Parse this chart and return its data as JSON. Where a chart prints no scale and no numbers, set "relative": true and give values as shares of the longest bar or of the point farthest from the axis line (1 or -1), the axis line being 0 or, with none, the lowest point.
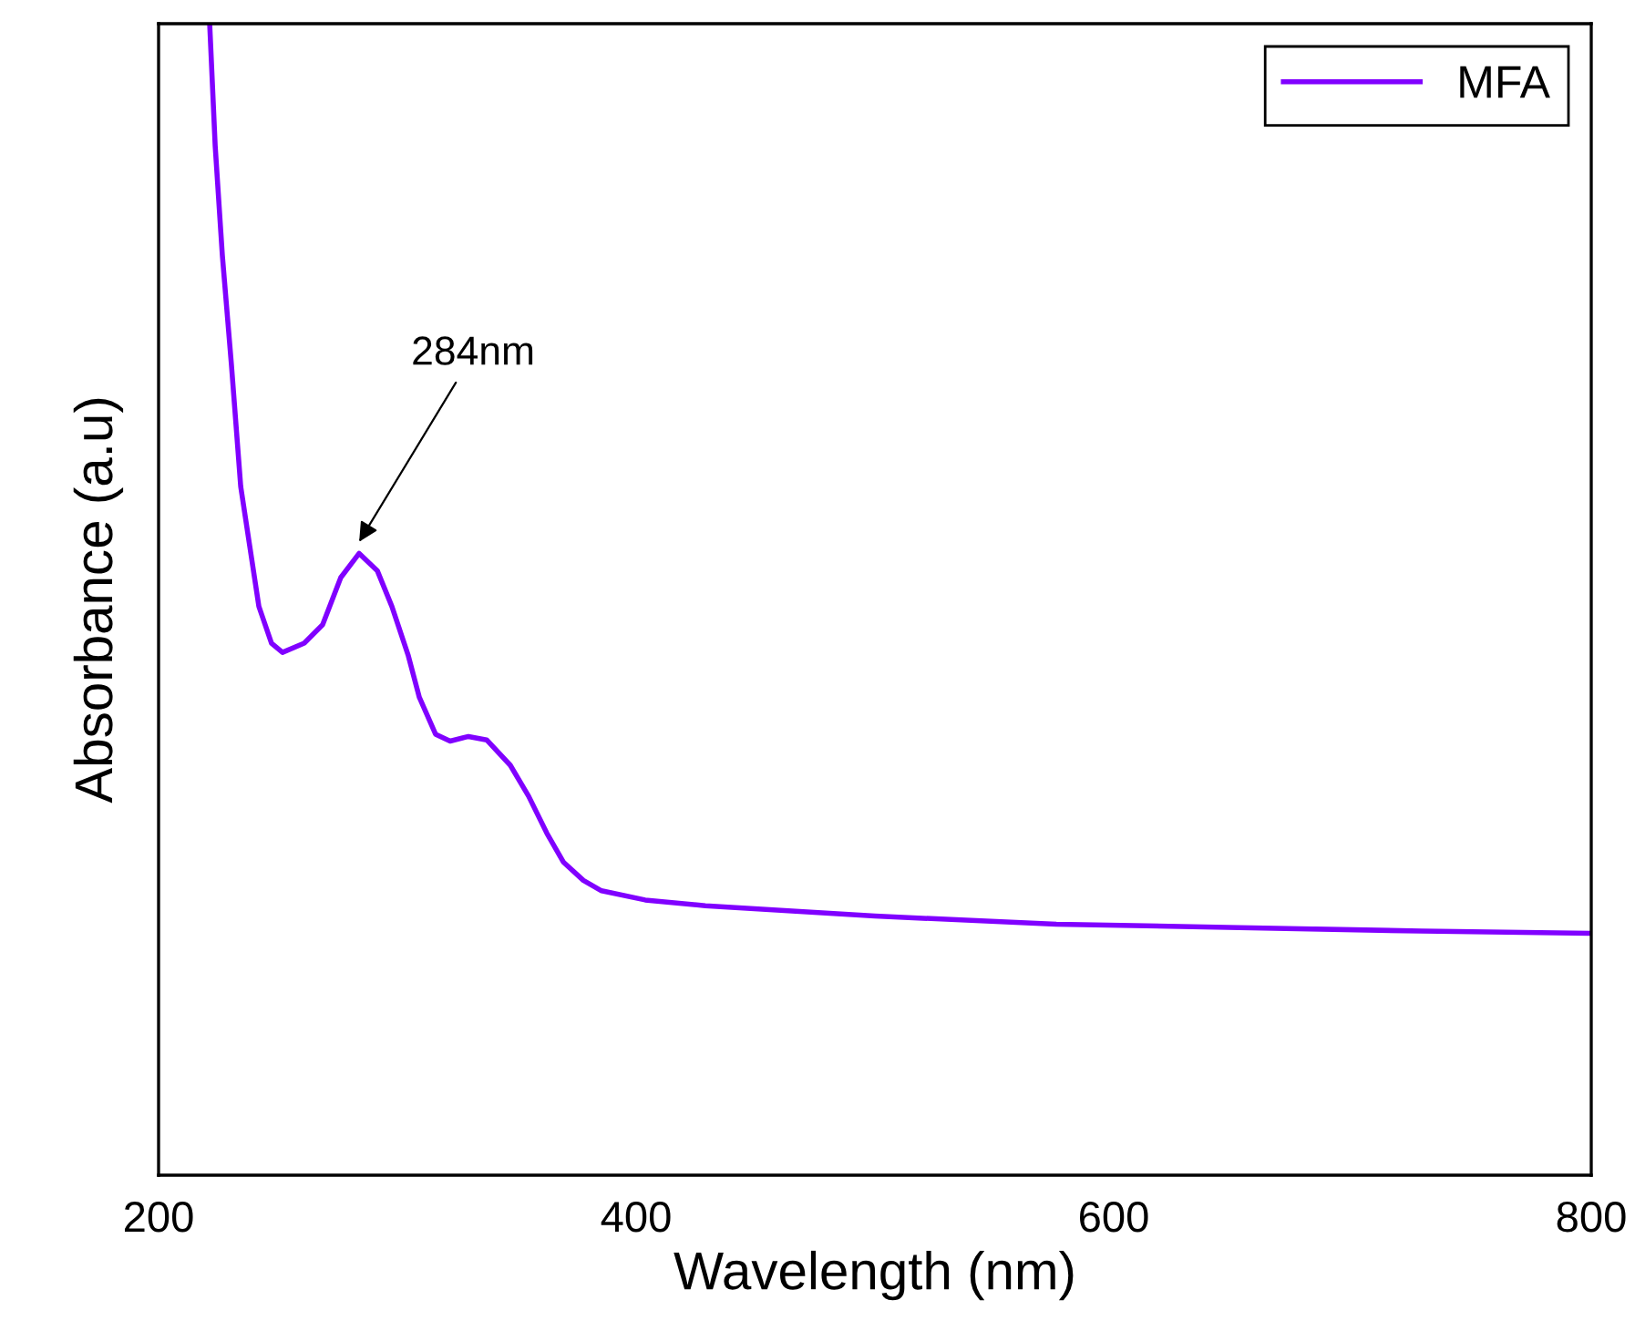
{
  "chart_data": {
    "type": "line",
    "relative": true,
    "xlabel": "Wavelength (nm)",
    "ylabel": "Absorbance (a.u)",
    "xlim": [
      200,
      800
    ],
    "xticks": [
      200,
      400,
      600,
      800
    ],
    "tick_labels": "x",
    "legend": "top right",
    "grid": false,
    "annotations": [
      {
        "text": "284nm",
        "x": 284,
        "y": 0.55
      }
    ],
    "series": [
      {
        "name": "MFA",
        "color": "#8000ff",
        "x": [
          221.4,
          223.7,
          226.7,
          230.5,
          234.4,
          238.2,
          242,
          247.3,
          251.9,
          261,
          268.7,
          276.3,
          284,
          291.6,
          297.7,
          304.6,
          309.2,
          316,
          322.1,
          329.8,
          337.4,
          347.3,
          355,
          362.6,
          369.5,
          377.9,
          385.5,
          403.8,
          429,
          500,
          576,
          652.7,
          729,
          799
        ],
        "values": [
          1.0,
          0.894,
          0.799,
          0.704,
          0.598,
          0.546,
          0.494,
          0.462,
          0.454,
          0.462,
          0.478,
          0.519,
          0.54,
          0.525,
          0.494,
          0.451,
          0.415,
          0.383,
          0.377,
          0.381,
          0.378,
          0.356,
          0.329,
          0.297,
          0.272,
          0.256,
          0.247,
          0.239,
          0.234,
          0.225,
          0.218,
          0.215,
          0.212,
          0.21
        ]
      }
    ]
  }
}
